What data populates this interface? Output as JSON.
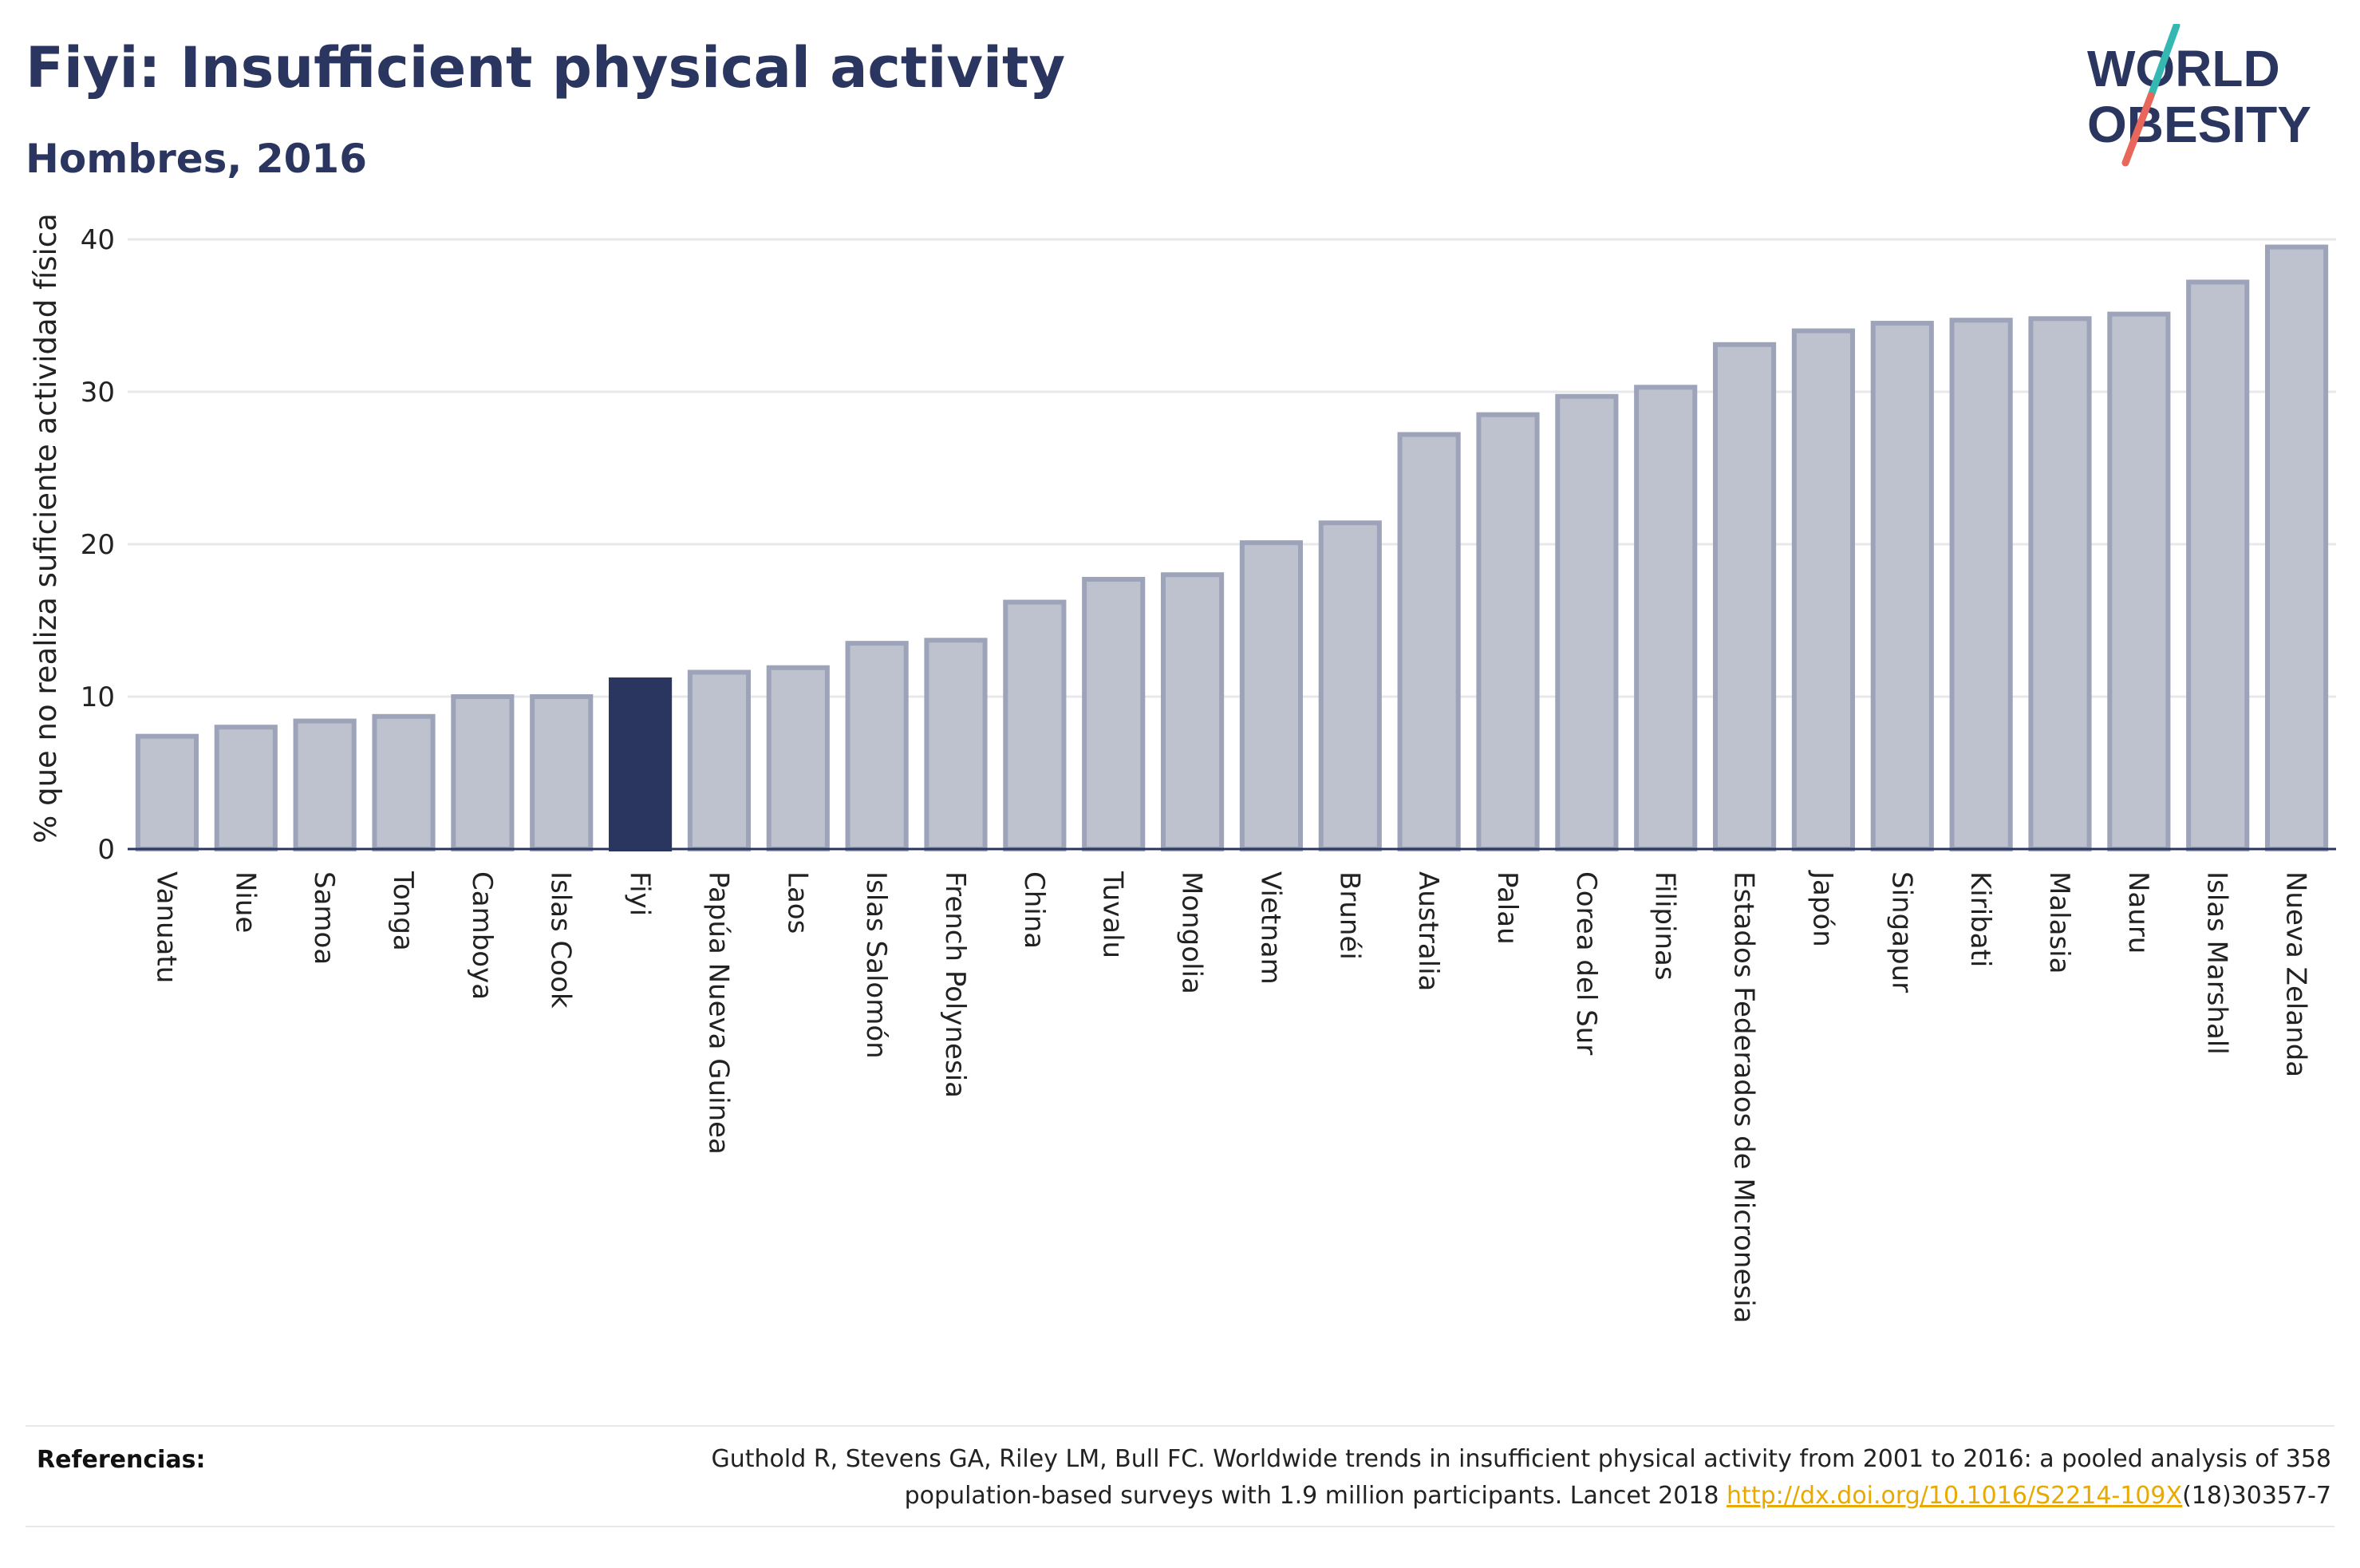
{
  "header": {
    "title": "Fiyi: Insufficient physical activity",
    "subtitle": "Hombres, 2016"
  },
  "logo": {
    "line1": "WORLD",
    "line2": "OBESITY",
    "colors": {
      "text": "#2b3660",
      "slash_top": "#35b7b2",
      "slash_bottom": "#e8665a"
    }
  },
  "chart_data": {
    "type": "bar",
    "title": "Fiyi: Insufficient physical activity",
    "subtitle": "Hombres, 2016",
    "xlabel": "",
    "ylabel": "% que no realiza suficiente actividad física",
    "ylim": [
      0,
      40
    ],
    "yticks": [
      0,
      10,
      20,
      30,
      40
    ],
    "grid": true,
    "highlight": "Fiyi",
    "colors": {
      "bar": "#bec2cf",
      "bar_border": "#9da3b9",
      "highlight": "#2b3660",
      "grid": "#e8e8ec",
      "axis": "#2b3660"
    },
    "categories": [
      "Vanuatu",
      "Niue",
      "Samoa",
      "Tonga",
      "Camboya",
      "Islas Cook",
      "Fiyi",
      "Papúa Nueva Guinea",
      "Laos",
      "Islas Salomón",
      "French Polynesia",
      "China",
      "Tuvalu",
      "Mongolia",
      "Vietnam",
      "Brunéi",
      "Australia",
      "Palau",
      "Corea del Sur",
      "Filipinas",
      "Estados Federados de Micronesia",
      "Japón",
      "Singapur",
      "Kiribati",
      "Malasia",
      "Nauru",
      "Islas Marshall",
      "Nueva Zelanda"
    ],
    "values": [
      7.4,
      8.0,
      8.4,
      8.7,
      10.0,
      10.0,
      11.1,
      11.6,
      11.9,
      13.5,
      13.7,
      16.2,
      17.7,
      18.0,
      20.1,
      21.4,
      27.2,
      28.5,
      29.7,
      30.3,
      33.1,
      34.0,
      34.5,
      34.7,
      34.8,
      35.1,
      37.2,
      39.5
    ]
  },
  "references": {
    "label": "Referencias:",
    "text": "Guthold R, Stevens GA, Riley LM, Bull FC. Worldwide trends in insufficient physical activity from 2001 to 2016: a pooled analysis of 358 population-based surveys with 1.9 million participants. Lancet 2018 ",
    "link": "http://dx.doi.org/10.1016/S2214-109X",
    "suffix": "(18)30357-7"
  }
}
